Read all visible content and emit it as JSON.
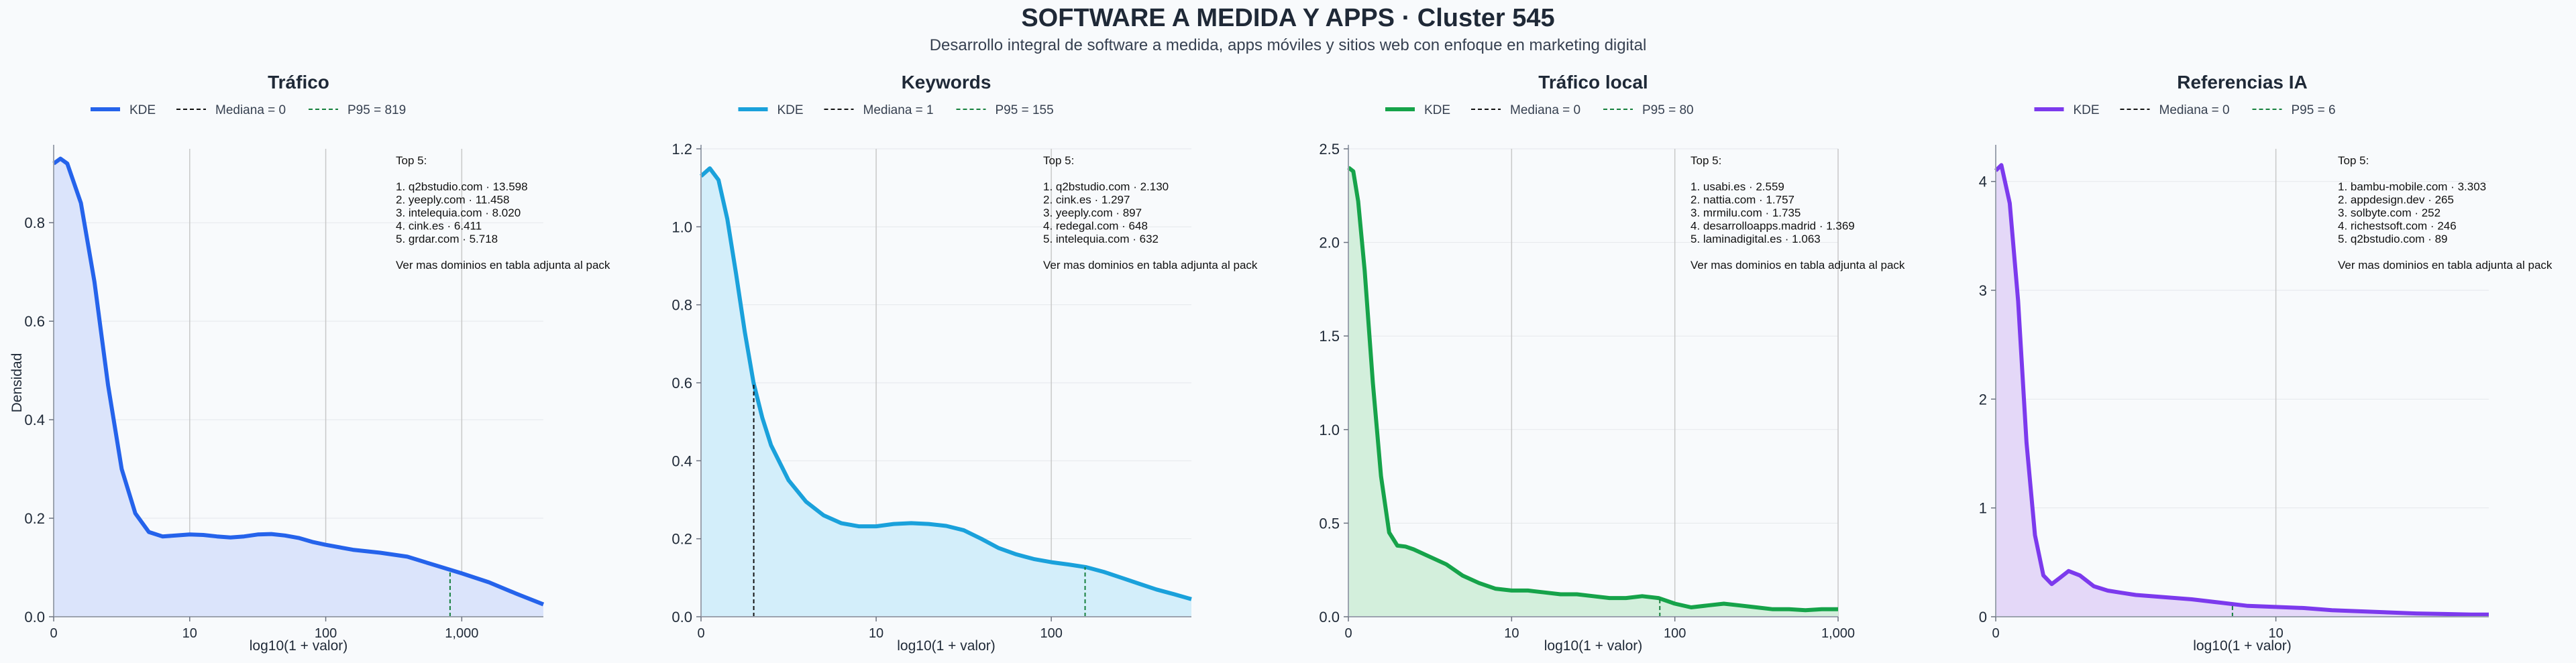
{
  "header": {
    "title": "SOFTWARE A MEDIDA Y APPS · Cluster 545",
    "subtitle": "Desarrollo integral de software a medida, apps móviles y sitios web con enfoque en marketing digital"
  },
  "chart_data": [
    {
      "type": "area",
      "title": "Tráfico",
      "xlabel": "log10(1 + valor)",
      "ylabel": "Densidad",
      "color": "#2563eb",
      "fill": "#dbe4fb",
      "xlim": [
        0,
        3.6
      ],
      "ylim": [
        0,
        0.95
      ],
      "yticks": [
        0.0,
        0.2,
        0.4,
        0.6,
        0.8
      ],
      "ytick_labels": [
        "0.0",
        "0.2",
        "0.4",
        "0.6",
        "0.8"
      ],
      "xticks": [
        0,
        1,
        2,
        3
      ],
      "xtick_labels": [
        "0",
        "10",
        "100",
        "1,000"
      ],
      "legend": [
        "KDE",
        "Mediana = 0",
        "P95 = 819"
      ],
      "median": 0,
      "p95": 2.914,
      "series": [
        {
          "x": [
            0,
            0.05,
            0.1,
            0.2,
            0.3,
            0.4,
            0.5,
            0.6,
            0.7,
            0.8,
            0.9,
            1.0,
            1.1,
            1.2,
            1.3,
            1.4,
            1.5,
            1.6,
            1.7,
            1.8,
            1.9,
            2.0,
            2.2,
            2.4,
            2.6,
            2.8,
            3.0,
            3.2,
            3.4,
            3.6
          ],
          "y": [
            0.92,
            0.93,
            0.92,
            0.84,
            0.68,
            0.47,
            0.3,
            0.21,
            0.172,
            0.163,
            0.165,
            0.167,
            0.166,
            0.163,
            0.161,
            0.163,
            0.167,
            0.168,
            0.165,
            0.16,
            0.152,
            0.146,
            0.136,
            0.13,
            0.122,
            0.105,
            0.088,
            0.07,
            0.047,
            0.025
          ]
        }
      ],
      "annotation": [
        "Top 5:",
        "",
        "1. q2bstudio.com · 13.598",
        "2. yeeply.com · 11.458",
        "3. intelequia.com · 8.020",
        "4. cink.es · 6.411",
        "5. grdar.com · 5.718",
        "",
        "Ver mas dominios en tabla adjunta al pack"
      ]
    },
    {
      "type": "area",
      "title": "Keywords",
      "xlabel": "log10(1 + valor)",
      "ylabel": "",
      "color": "#1aa1db",
      "fill": "#d3eefa",
      "xlim": [
        0,
        2.8
      ],
      "ylim": [
        0,
        1.2
      ],
      "yticks": [
        0.0,
        0.2,
        0.4,
        0.6,
        0.8,
        1.0,
        1.2
      ],
      "ytick_labels": [
        "0.0",
        "0.2",
        "0.4",
        "0.6",
        "0.8",
        "1.0",
        "1.2"
      ],
      "xticks": [
        0,
        1,
        2
      ],
      "xtick_labels": [
        "0",
        "10",
        "100"
      ],
      "legend": [
        "KDE",
        "Mediana = 1",
        "P95 = 155"
      ],
      "median": 0.301,
      "p95": 2.193,
      "series": [
        {
          "x": [
            0,
            0.05,
            0.1,
            0.15,
            0.2,
            0.25,
            0.3,
            0.35,
            0.4,
            0.5,
            0.6,
            0.7,
            0.8,
            0.9,
            1.0,
            1.1,
            1.2,
            1.3,
            1.4,
            1.5,
            1.6,
            1.7,
            1.8,
            1.9,
            2.0,
            2.1,
            2.2,
            2.3,
            2.4,
            2.5,
            2.6,
            2.7,
            2.8
          ],
          "y": [
            1.13,
            1.15,
            1.12,
            1.02,
            0.88,
            0.73,
            0.6,
            0.51,
            0.44,
            0.35,
            0.295,
            0.26,
            0.24,
            0.232,
            0.232,
            0.238,
            0.24,
            0.238,
            0.233,
            0.222,
            0.2,
            0.176,
            0.16,
            0.148,
            0.14,
            0.134,
            0.127,
            0.115,
            0.1,
            0.085,
            0.07,
            0.058,
            0.045
          ]
        }
      ],
      "annotation": [
        "Top 5:",
        "",
        "1. q2bstudio.com · 2.130",
        "2. cink.es · 1.297",
        "3. yeeply.com · 897",
        "4. redegal.com · 648",
        "5. intelequia.com · 632",
        "",
        "Ver mas dominios en tabla adjunta al pack"
      ]
    },
    {
      "type": "area",
      "title": "Tráfico local",
      "xlabel": "log10(1 + valor)",
      "ylabel": "",
      "color": "#16a34a",
      "fill": "#d3efdc",
      "xlim": [
        0,
        3.0
      ],
      "ylim": [
        0,
        2.5
      ],
      "yticks": [
        0.0,
        0.5,
        1.0,
        1.5,
        2.0,
        2.5
      ],
      "ytick_labels": [
        "0.0",
        "0.5",
        "1.0",
        "1.5",
        "2.0",
        "2.5"
      ],
      "xticks": [
        0,
        1,
        2,
        3
      ],
      "xtick_labels": [
        "0",
        "10",
        "100",
        "1,000"
      ],
      "legend": [
        "KDE",
        "Mediana = 0",
        "P95 = 80"
      ],
      "median": 0,
      "p95": 1.908,
      "series": [
        {
          "x": [
            0,
            0.03,
            0.06,
            0.1,
            0.15,
            0.2,
            0.25,
            0.3,
            0.35,
            0.4,
            0.5,
            0.6,
            0.7,
            0.8,
            0.9,
            1.0,
            1.1,
            1.2,
            1.3,
            1.4,
            1.5,
            1.6,
            1.7,
            1.8,
            1.9,
            2.0,
            2.1,
            2.2,
            2.3,
            2.4,
            2.5,
            2.6,
            2.7,
            2.8,
            2.9,
            3.0
          ],
          "y": [
            2.4,
            2.38,
            2.22,
            1.85,
            1.25,
            0.75,
            0.45,
            0.38,
            0.375,
            0.36,
            0.32,
            0.28,
            0.22,
            0.18,
            0.15,
            0.14,
            0.14,
            0.13,
            0.12,
            0.12,
            0.11,
            0.1,
            0.1,
            0.11,
            0.1,
            0.07,
            0.05,
            0.06,
            0.07,
            0.06,
            0.05,
            0.04,
            0.04,
            0.035,
            0.04,
            0.04
          ]
        }
      ],
      "annotation": [
        "Top 5:",
        "",
        "1. usabi.es · 2.559",
        "2. nattia.com · 1.757",
        "3. mrmilu.com · 1.735",
        "4. desarrolloapps.madrid · 1.369",
        "5. laminadigital.es · 1.063",
        "",
        "Ver mas dominios en tabla adjunta al pack"
      ]
    },
    {
      "type": "area",
      "title": "Referencias IA",
      "xlabel": "log10(1 + valor)",
      "ylabel": "",
      "color": "#7c3aed",
      "fill": "#e4d8f8",
      "xlim": [
        0,
        1.76
      ],
      "ylim": [
        0,
        4.3
      ],
      "yticks": [
        0,
        1,
        2,
        3,
        4
      ],
      "ytick_labels": [
        "0",
        "1",
        "2",
        "3",
        "4"
      ],
      "xticks": [
        0,
        1
      ],
      "xtick_labels": [
        "0",
        "10"
      ],
      "legend": [
        "KDE",
        "Mediana = 0",
        "P95 = 6"
      ],
      "median": 0,
      "p95": 0.845,
      "series": [
        {
          "x": [
            0,
            0.02,
            0.05,
            0.08,
            0.11,
            0.14,
            0.17,
            0.2,
            0.23,
            0.26,
            0.3,
            0.35,
            0.4,
            0.45,
            0.5,
            0.6,
            0.7,
            0.8,
            0.9,
            1.0,
            1.1,
            1.2,
            1.3,
            1.4,
            1.5,
            1.6,
            1.7,
            1.76
          ],
          "y": [
            4.1,
            4.15,
            3.8,
            2.9,
            1.6,
            0.75,
            0.38,
            0.3,
            0.36,
            0.42,
            0.38,
            0.28,
            0.24,
            0.22,
            0.2,
            0.18,
            0.16,
            0.13,
            0.1,
            0.09,
            0.08,
            0.06,
            0.05,
            0.04,
            0.03,
            0.025,
            0.02,
            0.02
          ]
        }
      ],
      "annotation": [
        "Top 5:",
        "",
        "1. bambu-mobile.com · 3.303",
        "2. appdesign.dev · 265",
        "3. solbyte.com · 252",
        "4. richestsoft.com · 246",
        "5. q2bstudio.com · 89",
        "",
        "Ver mas dominios en tabla adjunta al pack"
      ]
    }
  ]
}
